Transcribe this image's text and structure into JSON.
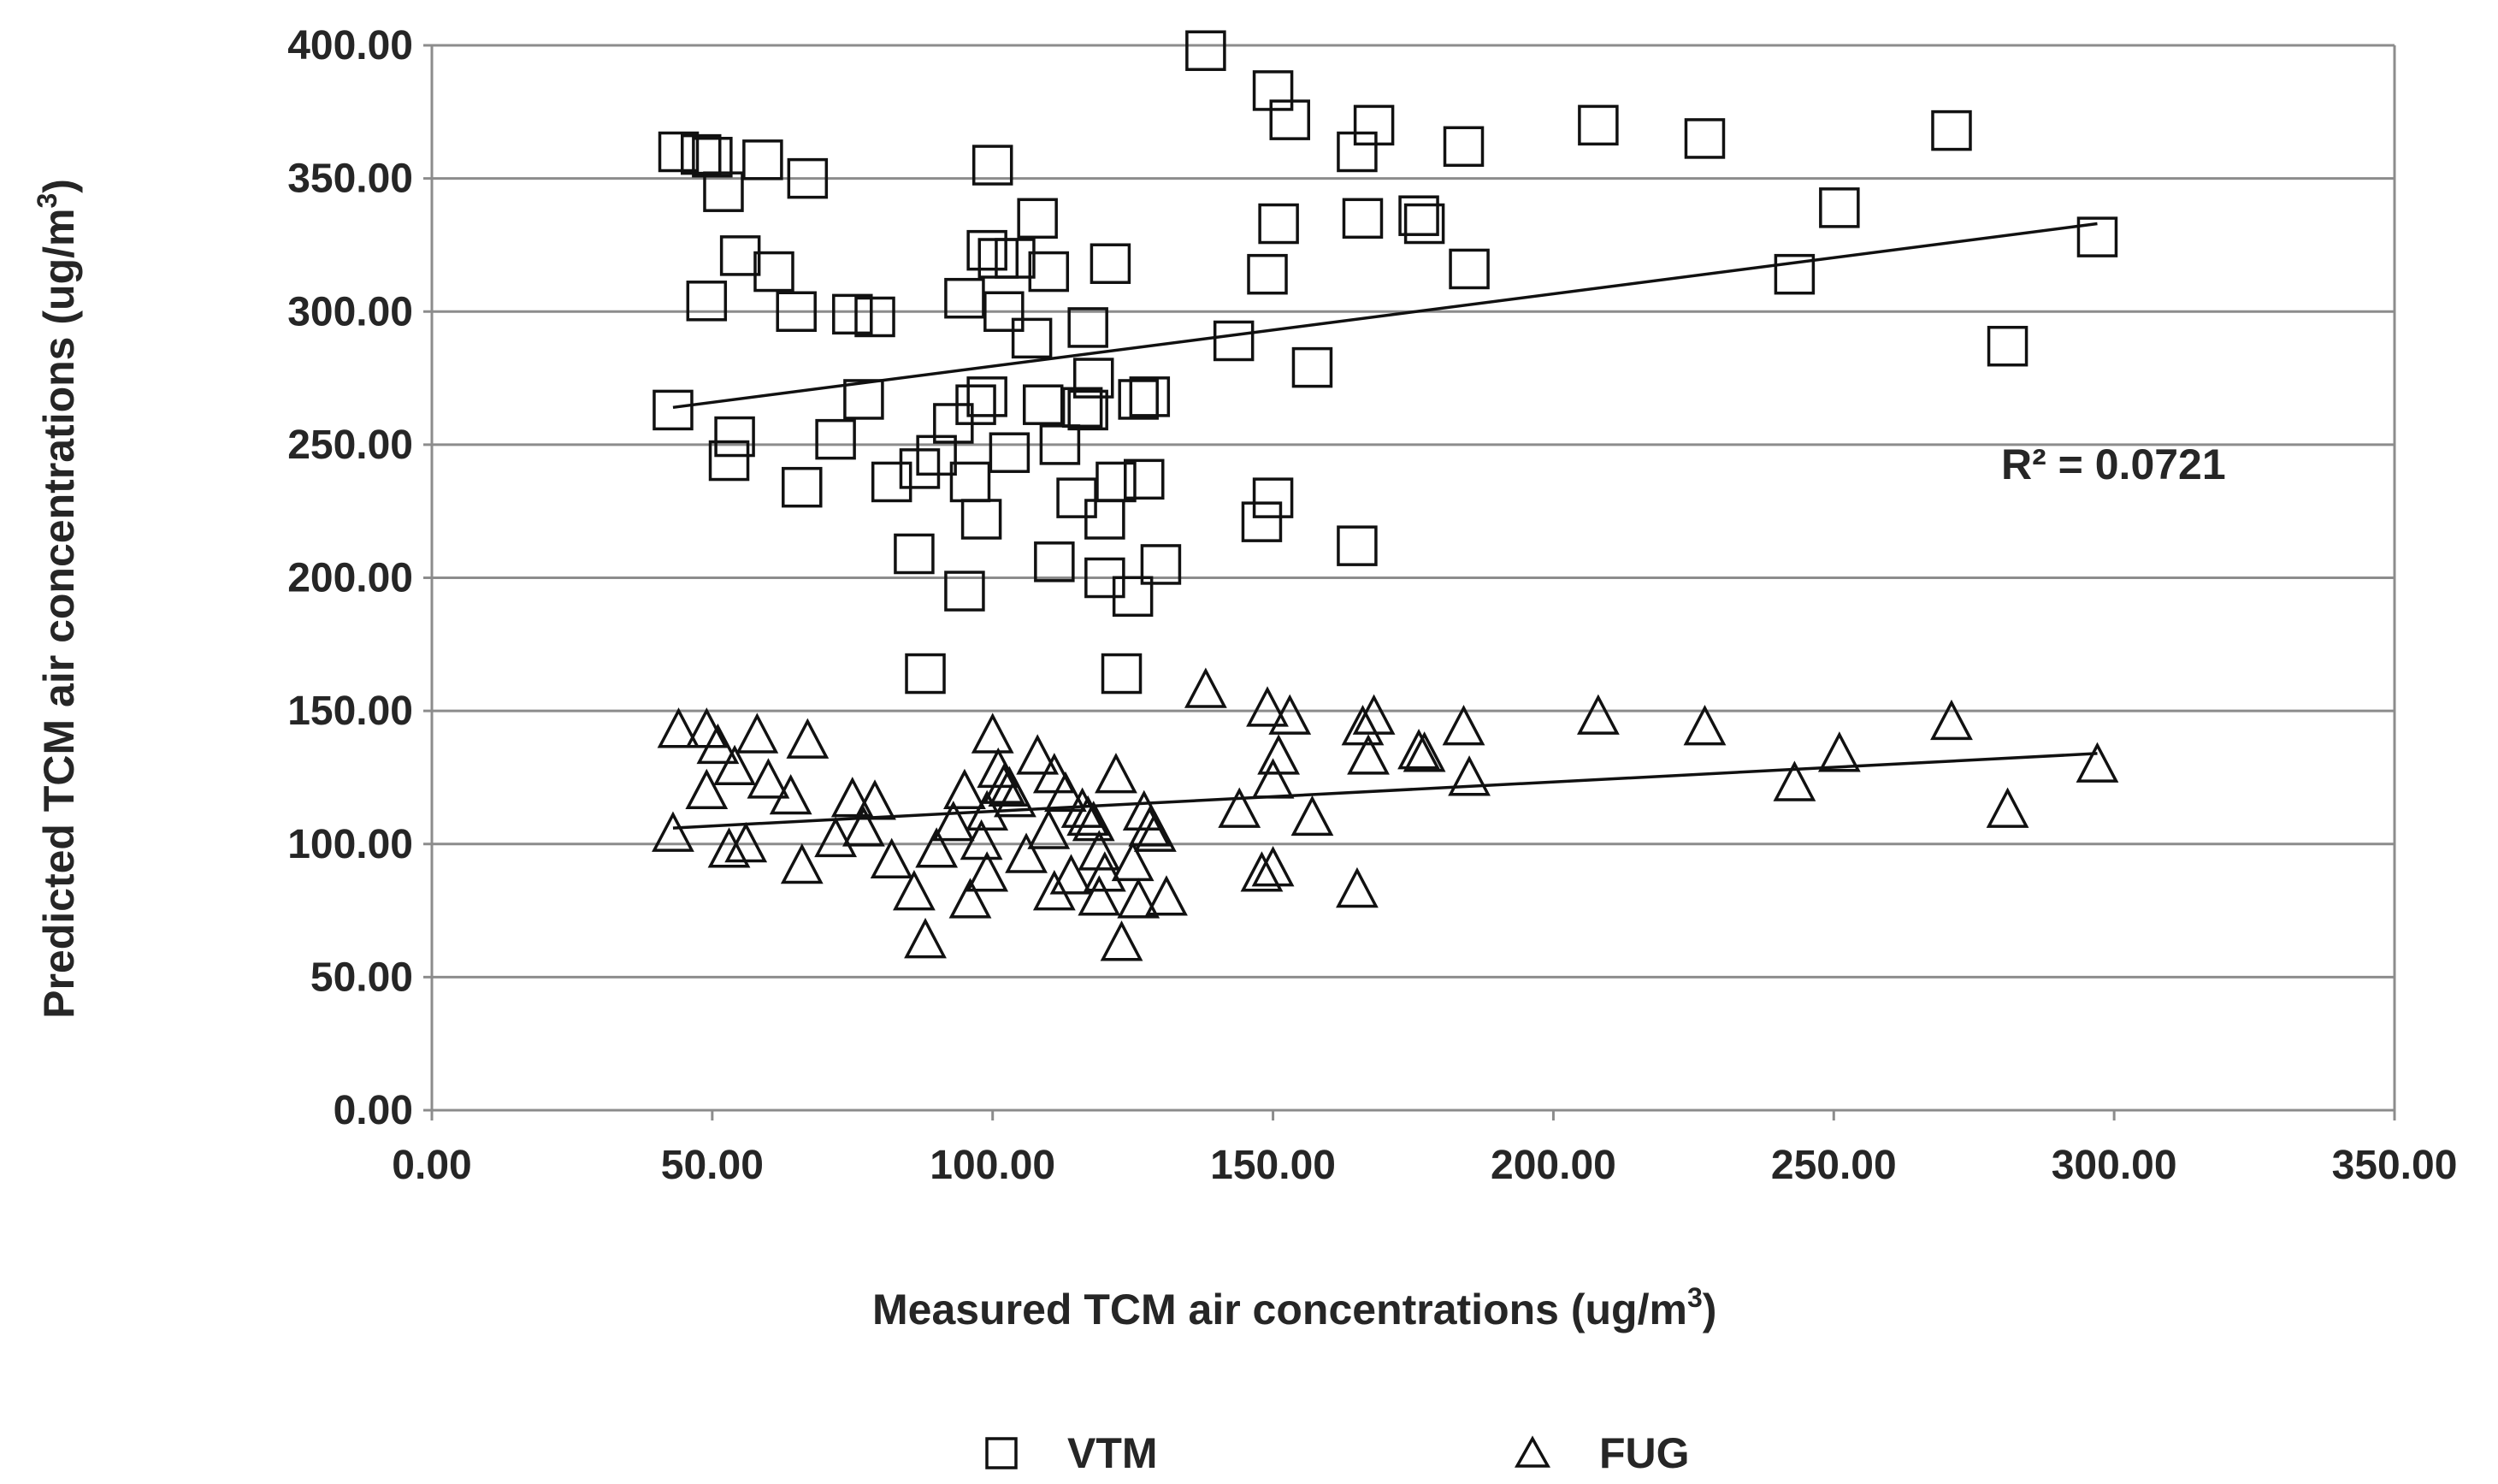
{
  "chart_data": {
    "type": "scatter",
    "title": "",
    "xlabel": "Measured TCM  air concentrations (ug/m",
    "xlabel_sup": "3",
    "xlabel_end": ")",
    "ylabel": "Predicted TCM air concentrations  (ug/m",
    "ylabel_sup": "3",
    "ylabel_end": ")",
    "xlim": [
      0,
      350
    ],
    "ylim": [
      0,
      400
    ],
    "x_ticks": [
      0,
      50,
      100,
      150,
      200,
      250,
      300,
      350
    ],
    "y_ticks": [
      0,
      50,
      100,
      150,
      200,
      250,
      300,
      350,
      400
    ],
    "x_tick_labels": [
      "0.00",
      "50.00",
      "100.00",
      "150.00",
      "200.00",
      "250.00",
      "300.00",
      "350.00"
    ],
    "y_tick_labels": [
      "0.00",
      "50.00",
      "100.00",
      "150.00",
      "200.00",
      "250.00",
      "300.00",
      "350.00",
      "400.00"
    ],
    "grid": "horizontal",
    "legend_position": "bottom",
    "annotation": "R² = 0.0721",
    "series": [
      {
        "name": "VTM",
        "marker": "square",
        "trendline": [
          [
            43,
            264
          ],
          [
            297,
            333
          ]
        ],
        "points": [
          [
            44,
            360
          ],
          [
            48,
            359
          ],
          [
            50,
            358
          ],
          [
            52,
            345
          ],
          [
            59,
            357
          ],
          [
            67,
            350
          ],
          [
            55,
            321
          ],
          [
            61,
            315
          ],
          [
            49,
            304
          ],
          [
            65,
            300
          ],
          [
            75,
            299
          ],
          [
            79,
            298
          ],
          [
            43,
            263
          ],
          [
            54,
            253
          ],
          [
            53,
            244
          ],
          [
            66,
            234
          ],
          [
            72,
            252
          ],
          [
            77,
            267
          ],
          [
            82,
            236
          ],
          [
            87,
            241
          ],
          [
            93,
            258
          ],
          [
            90,
            246
          ],
          [
            96,
            236
          ],
          [
            98,
            222
          ],
          [
            86,
            209
          ],
          [
            95,
            195
          ],
          [
            88,
            164
          ],
          [
            100,
            355
          ],
          [
            108,
            335
          ],
          [
            99,
            323
          ],
          [
            101,
            320
          ],
          [
            104,
            320
          ],
          [
            102,
            300
          ],
          [
            107,
            290
          ],
          [
            110,
            315
          ],
          [
            97,
            265
          ],
          [
            99,
            268
          ],
          [
            103,
            247
          ],
          [
            109,
            265
          ],
          [
            112,
            250
          ],
          [
            111,
            206
          ],
          [
            95,
            305
          ],
          [
            115,
            230
          ],
          [
            117,
            294
          ],
          [
            118,
            275
          ],
          [
            116,
            264
          ],
          [
            117,
            263
          ],
          [
            120,
            222
          ],
          [
            121,
            318
          ],
          [
            122,
            236
          ],
          [
            120,
            200
          ],
          [
            125,
            193
          ],
          [
            127,
            237
          ],
          [
            126,
            267
          ],
          [
            128,
            268
          ],
          [
            123,
            164
          ],
          [
            130,
            205
          ],
          [
            138,
            398
          ],
          [
            150,
            383
          ],
          [
            153,
            372
          ],
          [
            165,
            360
          ],
          [
            168,
            370
          ],
          [
            143,
            289
          ],
          [
            149,
            314
          ],
          [
            151,
            333
          ],
          [
            157,
            279
          ],
          [
            166,
            335
          ],
          [
            176,
            336
          ],
          [
            177,
            333
          ],
          [
            184,
            362
          ],
          [
            185,
            316
          ],
          [
            148,
            221
          ],
          [
            150,
            230
          ],
          [
            165,
            212
          ],
          [
            208,
            370
          ],
          [
            227,
            365
          ],
          [
            243,
            314
          ],
          [
            251,
            339
          ],
          [
            271,
            368
          ],
          [
            281,
            287
          ],
          [
            297,
            328
          ]
        ]
      },
      {
        "name": "FUG",
        "marker": "triangle",
        "trendline": [
          [
            43,
            106
          ],
          [
            297,
            134
          ]
        ],
        "points": [
          [
            44,
            143
          ],
          [
            49,
            143
          ],
          [
            51,
            137
          ],
          [
            58,
            141
          ],
          [
            67,
            139
          ],
          [
            43,
            104
          ],
          [
            49,
            120
          ],
          [
            54,
            129
          ],
          [
            60,
            124
          ],
          [
            64,
            118
          ],
          [
            53,
            98
          ],
          [
            56,
            100
          ],
          [
            66,
            92
          ],
          [
            72,
            102
          ],
          [
            75,
            117
          ],
          [
            79,
            116
          ],
          [
            77,
            106
          ],
          [
            82,
            94
          ],
          [
            86,
            82
          ],
          [
            88,
            64
          ],
          [
            90,
            98
          ],
          [
            93,
            108
          ],
          [
            95,
            120
          ],
          [
            96,
            79
          ],
          [
            98,
            101
          ],
          [
            99,
            112
          ],
          [
            100,
            141
          ],
          [
            101,
            128
          ],
          [
            102,
            122
          ],
          [
            103,
            121
          ],
          [
            104,
            117
          ],
          [
            99,
            89
          ],
          [
            106,
            96
          ],
          [
            108,
            133
          ],
          [
            110,
            105
          ],
          [
            111,
            126
          ],
          [
            111,
            82
          ],
          [
            113,
            119
          ],
          [
            114,
            88
          ],
          [
            116,
            113
          ],
          [
            117,
            110
          ],
          [
            118,
            108
          ],
          [
            119,
            97
          ],
          [
            119,
            80
          ],
          [
            120,
            89
          ],
          [
            122,
            126
          ],
          [
            123,
            63
          ],
          [
            125,
            93
          ],
          [
            126,
            79
          ],
          [
            127,
            112
          ],
          [
            128,
            106
          ],
          [
            129,
            104
          ],
          [
            131,
            80
          ],
          [
            138,
            158
          ],
          [
            144,
            113
          ],
          [
            148,
            89
          ],
          [
            150,
            124
          ],
          [
            149,
            151
          ],
          [
            151,
            133
          ],
          [
            153,
            148
          ],
          [
            150,
            91
          ],
          [
            157,
            110
          ],
          [
            165,
            83
          ],
          [
            166,
            144
          ],
          [
            167,
            133
          ],
          [
            168,
            148
          ],
          [
            176,
            135
          ],
          [
            177,
            134
          ],
          [
            184,
            144
          ],
          [
            185,
            125
          ],
          [
            208,
            148
          ],
          [
            227,
            144
          ],
          [
            243,
            123
          ],
          [
            251,
            134
          ],
          [
            271,
            146
          ],
          [
            281,
            113
          ],
          [
            297,
            130
          ]
        ]
      }
    ]
  }
}
